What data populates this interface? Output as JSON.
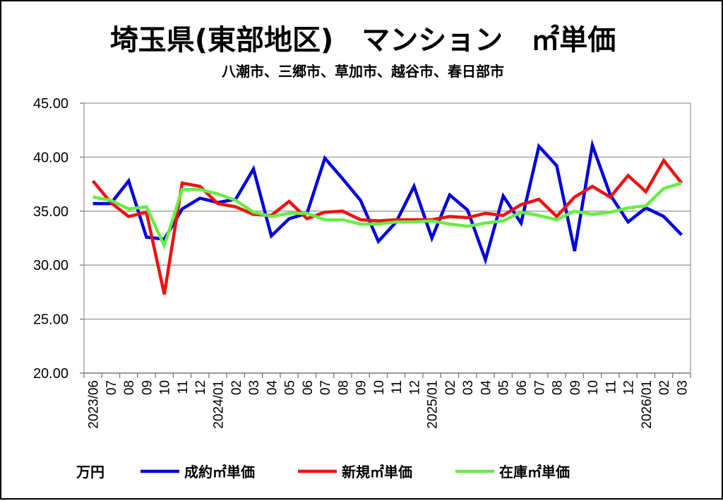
{
  "chart_data": {
    "type": "line",
    "title": "埼玉県(東部地区)　マンション　㎡単価",
    "subtitle": "八潮市、三郷市、草加市、越谷市、春日部市",
    "unit_label": "万円",
    "ylim": [
      20,
      45
    ],
    "ytick_labels": [
      "45.00",
      "40.00",
      "35.00",
      "30.00",
      "25.00",
      "20.00"
    ],
    "grid": true,
    "legend_position": "bottom",
    "categories": [
      "2023/06",
      "07",
      "08",
      "09",
      "10",
      "11",
      "12",
      "2024/01",
      "02",
      "03",
      "04",
      "05",
      "06",
      "07",
      "08",
      "09",
      "10",
      "11",
      "12",
      "2025/01",
      "02",
      "03",
      "04",
      "05",
      "06",
      "07",
      "08",
      "09",
      "10",
      "11",
      "12",
      "2026/01",
      "02",
      "03"
    ],
    "series": [
      {
        "name": "成約㎡単価",
        "color": "#0000dd",
        "values": [
          35.7,
          35.7,
          37.8,
          32.6,
          32.4,
          35.2,
          36.2,
          35.8,
          36.1,
          38.9,
          32.7,
          34.3,
          34.8,
          39.9,
          38.0,
          36.0,
          32.2,
          34.0,
          37.3,
          32.5,
          36.5,
          35.1,
          30.5,
          36.4,
          33.9,
          41.0,
          39.2,
          31.3,
          41.1,
          36.5,
          34.0,
          35.3,
          34.5,
          32.8
        ]
      },
      {
        "name": "新規㎡単価",
        "color": "#ee1111",
        "values": [
          37.8,
          35.8,
          34.5,
          34.9,
          27.3,
          37.6,
          37.3,
          35.7,
          35.4,
          34.7,
          34.6,
          35.9,
          34.3,
          34.9,
          35.0,
          34.2,
          34.1,
          34.2,
          34.2,
          34.2,
          34.5,
          34.4,
          34.8,
          34.6,
          35.6,
          36.1,
          34.5,
          36.3,
          37.3,
          36.3,
          38.3,
          36.8,
          39.7,
          37.6
        ]
      },
      {
        "name": "在庫㎡単価",
        "color": "#66ee44",
        "values": [
          36.3,
          36.0,
          35.2,
          35.4,
          31.8,
          37.0,
          37.0,
          36.6,
          36.0,
          34.9,
          34.5,
          34.8,
          34.8,
          34.2,
          34.2,
          33.8,
          33.8,
          34.0,
          34.0,
          34.1,
          33.8,
          33.6,
          33.9,
          34.1,
          34.9,
          34.6,
          34.2,
          35.0,
          34.7,
          34.9,
          35.3,
          35.5,
          37.1,
          37.6
        ]
      }
    ]
  }
}
